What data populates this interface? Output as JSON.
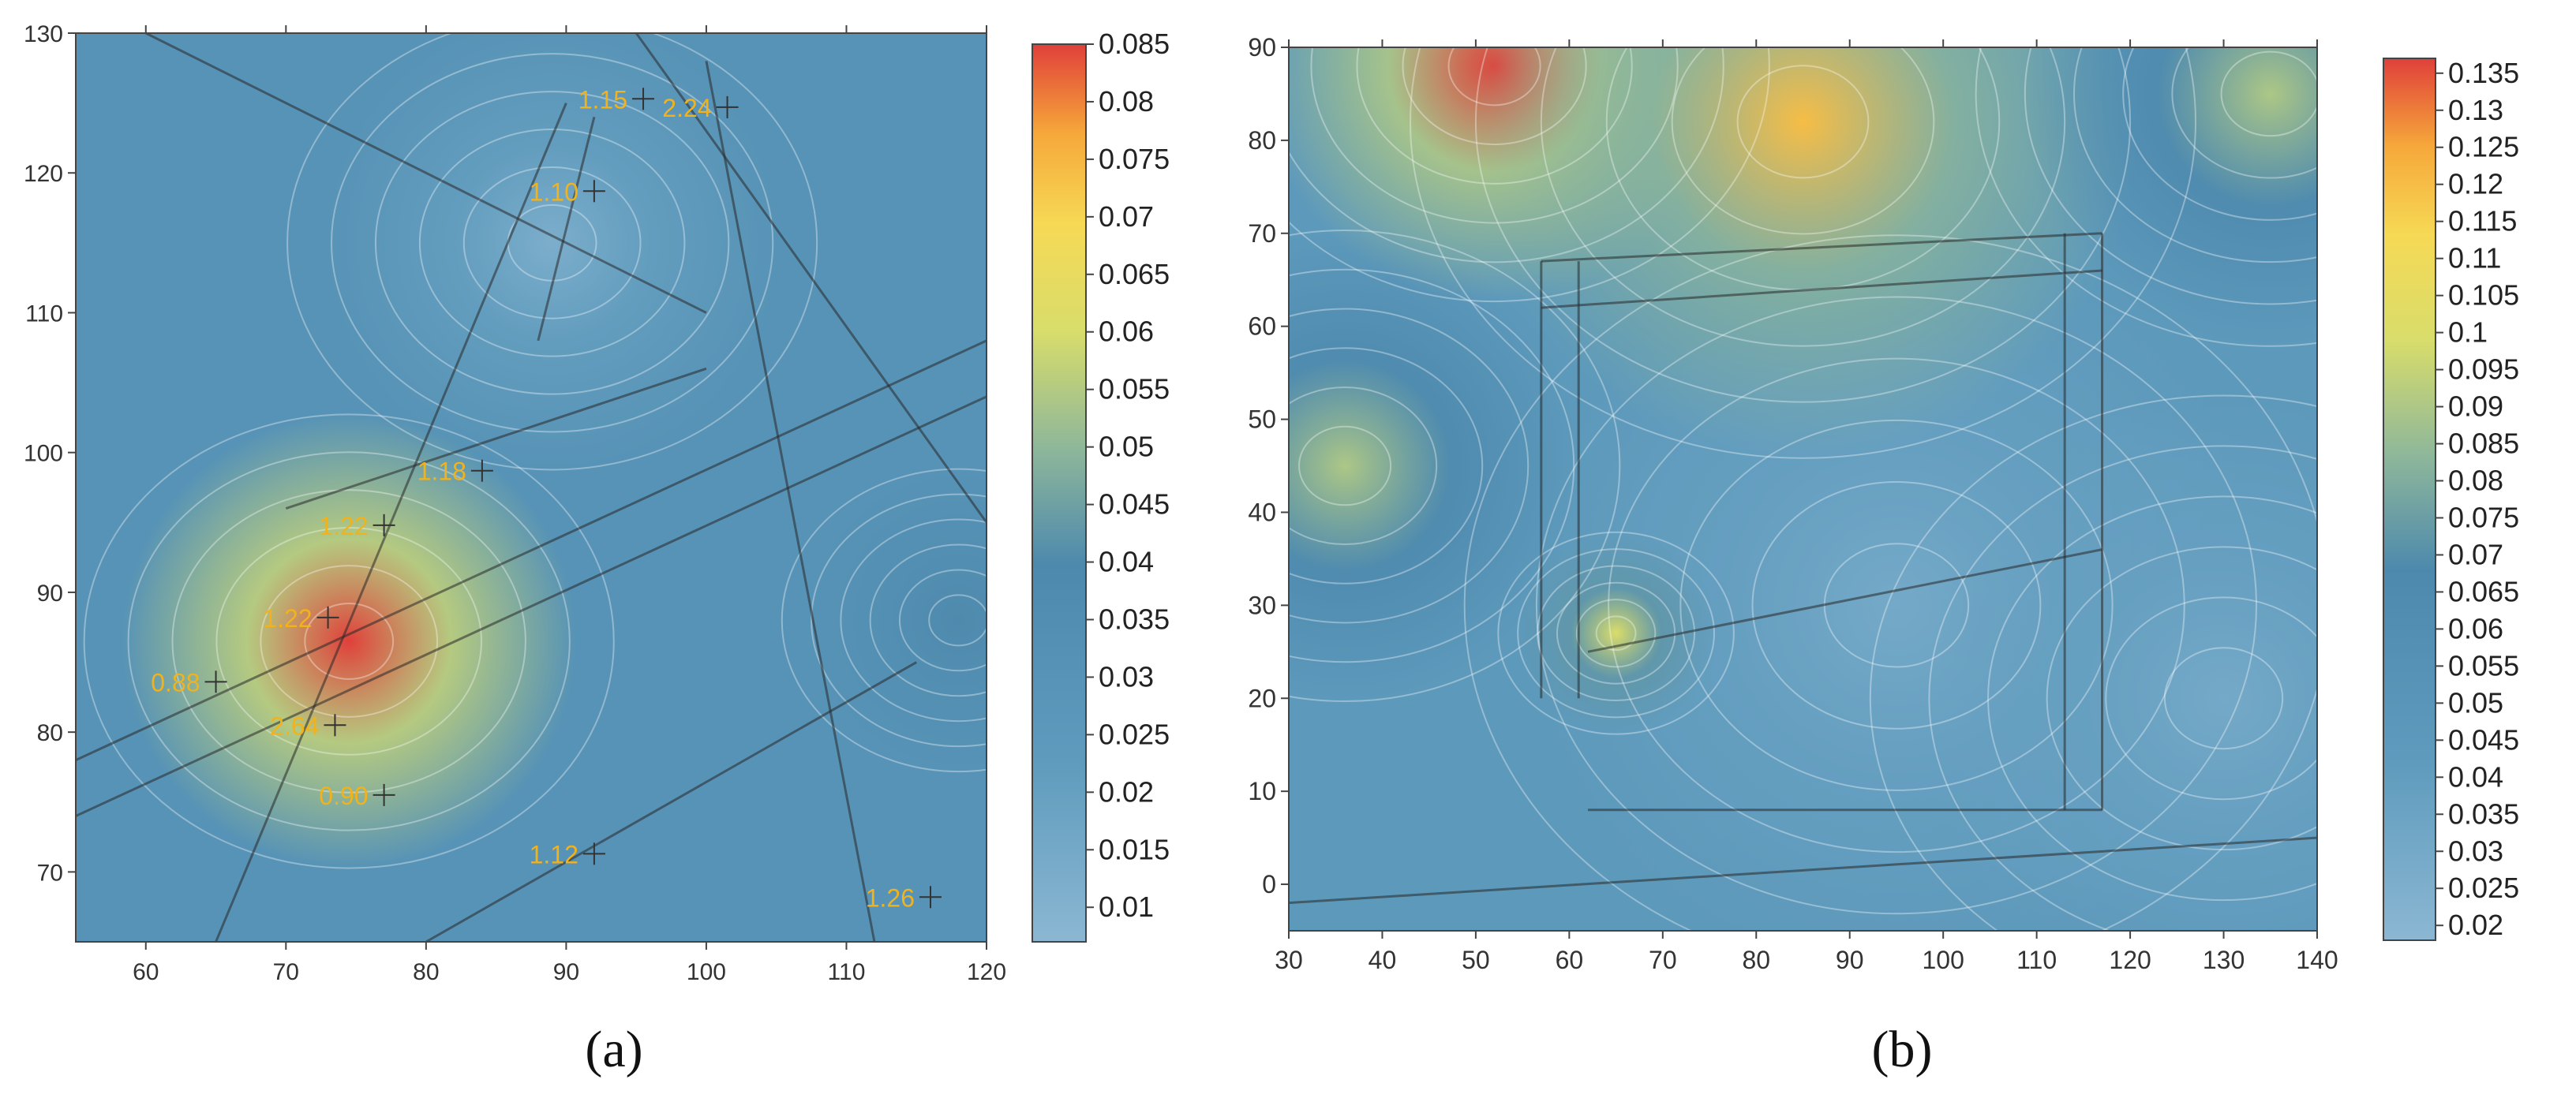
{
  "chart_data": [
    {
      "type": "heatmap",
      "panel_label": "(a)",
      "xlim": [
        55,
        120
      ],
      "ylim": [
        65,
        130
      ],
      "xticks": [
        60,
        70,
        80,
        90,
        100,
        110,
        120
      ],
      "yticks": [
        70,
        80,
        90,
        100,
        110,
        120,
        130
      ],
      "colorbar": {
        "min": 0.007,
        "max": 0.085,
        "ticks": [
          "0.01",
          "0.015",
          "0.02",
          "0.025",
          "0.03",
          "0.035",
          "0.04",
          "0.045",
          "0.05",
          "0.055",
          "0.06",
          "0.065",
          "0.07",
          "0.075",
          "0.08",
          "0.085"
        ]
      },
      "hotspots": [
        {
          "x": 74.5,
          "y": 86.5,
          "value": 0.085,
          "spread": 9
        },
        {
          "x": 118,
          "y": 88,
          "value": 0.04,
          "spread": 6
        }
      ],
      "cool_spots": [
        {
          "x": 89,
          "y": 115,
          "value": 0.012,
          "spread": 9
        }
      ],
      "background_value": 0.03,
      "annotations": [
        {
          "text": "1.15",
          "x": 95.5,
          "y": 125.3
        },
        {
          "text": "2.24",
          "x": 101.5,
          "y": 124.7
        },
        {
          "text": "1.10",
          "x": 92,
          "y": 118.7
        },
        {
          "text": "1.18",
          "x": 84,
          "y": 98.7
        },
        {
          "text": "1.22",
          "x": 77,
          "y": 94.8
        },
        {
          "text": "1.22",
          "x": 73,
          "y": 88.2
        },
        {
          "text": "0.88",
          "x": 65,
          "y": 83.6
        },
        {
          "text": "2.64",
          "x": 73.5,
          "y": 80.5
        },
        {
          "text": "0.90",
          "x": 77,
          "y": 75.5
        },
        {
          "text": "1.12",
          "x": 92,
          "y": 71.3
        },
        {
          "text": "1.26",
          "x": 116,
          "y": 68.2
        }
      ]
    },
    {
      "type": "heatmap",
      "panel_label": "(b)",
      "xlim": [
        30,
        140
      ],
      "ylim": [
        -5,
        90
      ],
      "xticks": [
        30,
        40,
        50,
        60,
        70,
        80,
        90,
        100,
        110,
        120,
        130,
        140
      ],
      "yticks": [
        0,
        10,
        20,
        30,
        40,
        50,
        60,
        70,
        80,
        90
      ],
      "colorbar": {
        "min": 0.018,
        "max": 0.137,
        "ticks": [
          "0.02",
          "0.025",
          "0.03",
          "0.035",
          "0.04",
          "0.045",
          "0.05",
          "0.055",
          "0.06",
          "0.065",
          "0.07",
          "0.075",
          "0.08",
          "0.085",
          "0.09",
          "0.095",
          "0.1",
          "0.105",
          "0.11",
          "0.115",
          "0.12",
          "0.125",
          "0.13",
          "0.135"
        ]
      },
      "hotspots": [
        {
          "x": 52,
          "y": 88,
          "value": 0.137,
          "spread": 14
        },
        {
          "x": 85,
          "y": 82,
          "value": 0.12,
          "spread": 20
        },
        {
          "x": 65,
          "y": 27,
          "value": 0.1,
          "spread": 6
        },
        {
          "x": 36,
          "y": 45,
          "value": 0.09,
          "spread": 14
        },
        {
          "x": 135,
          "y": 85,
          "value": 0.09,
          "spread": 15
        }
      ],
      "cool_spots": [
        {
          "x": 95,
          "y": 30,
          "value": 0.03,
          "spread": 22
        },
        {
          "x": 130,
          "y": 20,
          "value": 0.03,
          "spread": 18
        }
      ],
      "background_value": 0.045
    }
  ]
}
